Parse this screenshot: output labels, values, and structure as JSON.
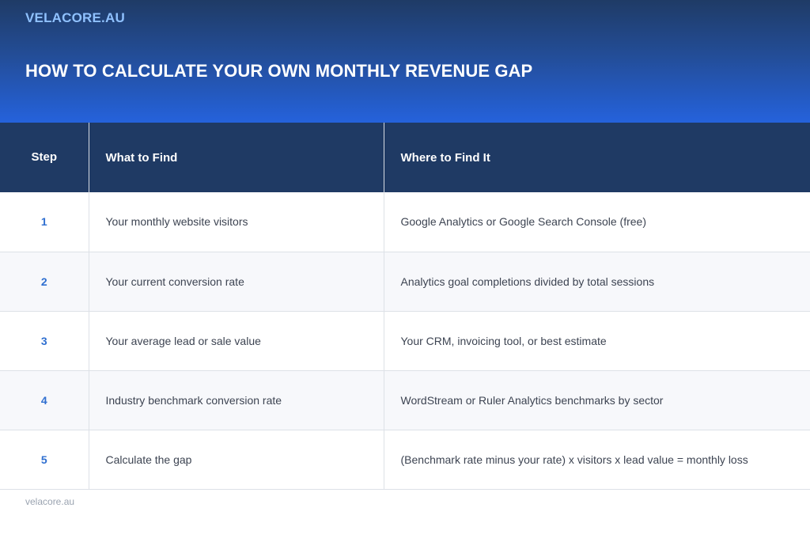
{
  "header": {
    "brand": "VELACORE.AU",
    "title": "HOW TO CALCULATE YOUR OWN MONTHLY REVENUE GAP"
  },
  "table": {
    "columns": [
      "Step",
      "What to Find",
      "Where to Find It"
    ],
    "rows": [
      {
        "step": "1",
        "what": "Your monthly website visitors",
        "where": "Google Analytics or Google Search Console (free)"
      },
      {
        "step": "2",
        "what": "Your current conversion rate",
        "where": "Analytics goal completions divided by total sessions"
      },
      {
        "step": "3",
        "what": "Your average lead or sale value",
        "where": "Your CRM, invoicing tool, or best estimate"
      },
      {
        "step": "4",
        "what": "Industry benchmark conversion rate",
        "where": "WordStream or Ruler Analytics benchmarks by sector"
      },
      {
        "step": "5",
        "what": "Calculate the gap",
        "where": "(Benchmark rate minus your rate) x visitors x lead value = monthly loss"
      }
    ]
  },
  "footer": {
    "text": "velacore.au"
  },
  "colors": {
    "header_top": "#1f3b66",
    "header_bottom": "#2562dc",
    "table_header": "#1f3a64",
    "step_number": "#2f6fd0",
    "brand": "#8fc1ff"
  }
}
